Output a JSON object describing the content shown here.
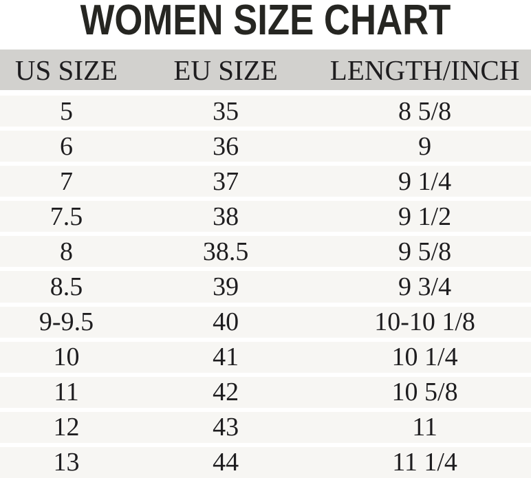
{
  "title": "WOMEN SIZE CHART",
  "table": {
    "columns": [
      "US SIZE",
      "EU SIZE",
      "LENGTH/INCH"
    ],
    "rows": [
      [
        "5",
        "35",
        "8 5/8"
      ],
      [
        "6",
        "36",
        "9"
      ],
      [
        "7",
        "37",
        "9 1/4"
      ],
      [
        "7.5",
        "38",
        "9 1/2"
      ],
      [
        "8",
        "38.5",
        "9 5/8"
      ],
      [
        "8.5",
        "39",
        "9 3/4"
      ],
      [
        "9-9.5",
        "40",
        "10-10 1/8"
      ],
      [
        "10",
        "41",
        "10 1/4"
      ],
      [
        "11",
        "42",
        "10 5/8"
      ],
      [
        "12",
        "43",
        "11"
      ],
      [
        "13",
        "44",
        "11 1/4"
      ]
    ]
  },
  "colors": {
    "header_bg": "#d2d1ce",
    "row_bg": "#f7f6f3",
    "separator": "#ffffff",
    "title_text": "#262622",
    "body_text": "#1e1d1f"
  },
  "chart_data": {
    "type": "table",
    "title": "WOMEN SIZE CHART",
    "columns": [
      "US SIZE",
      "EU SIZE",
      "LENGTH/INCH"
    ],
    "rows": [
      [
        "5",
        "35",
        "8 5/8"
      ],
      [
        "6",
        "36",
        "9"
      ],
      [
        "7",
        "37",
        "9 1/4"
      ],
      [
        "7.5",
        "38",
        "9 1/2"
      ],
      [
        "8",
        "38.5",
        "9 5/8"
      ],
      [
        "8.5",
        "39",
        "9 3/4"
      ],
      [
        "9-9.5",
        "40",
        "10-10 1/8"
      ],
      [
        "10",
        "41",
        "10 1/4"
      ],
      [
        "11",
        "42",
        "10 5/8"
      ],
      [
        "12",
        "43",
        "11"
      ],
      [
        "13",
        "44",
        "11 1/4"
      ]
    ]
  }
}
